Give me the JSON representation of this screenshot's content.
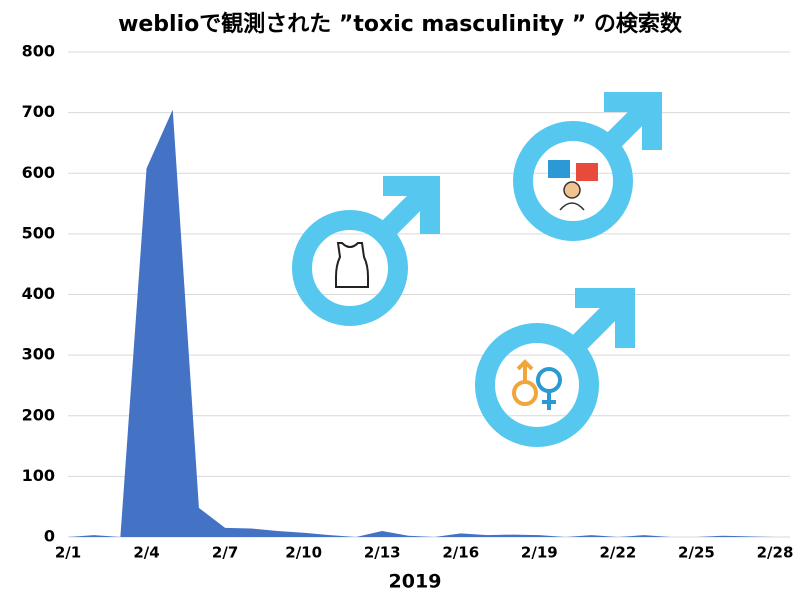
{
  "chart_data": {
    "type": "area",
    "title": "weblioで観測された ”toxic masculinity ” の検索数",
    "xlabel": "2019",
    "categories": [
      "2/1",
      null,
      null,
      "2/4",
      null,
      null,
      "2/7",
      null,
      null,
      "2/10",
      null,
      null,
      "2/13",
      null,
      null,
      "2/16",
      null,
      null,
      "2/19",
      null,
      null,
      "2/22",
      null,
      null,
      "2/25",
      null,
      null,
      "2/28"
    ],
    "values": [
      0,
      3,
      0,
      608,
      705,
      48,
      15,
      14,
      10,
      7,
      3,
      0,
      10,
      2,
      0,
      6,
      3,
      4,
      3,
      0,
      3,
      0,
      3,
      0,
      0,
      2,
      1,
      0
    ],
    "color": "#4472c4",
    "ylim": [
      0,
      800
    ],
    "yticks": [
      0,
      100,
      200,
      300,
      400,
      500,
      600,
      700,
      800
    ],
    "grid": true
  }
}
